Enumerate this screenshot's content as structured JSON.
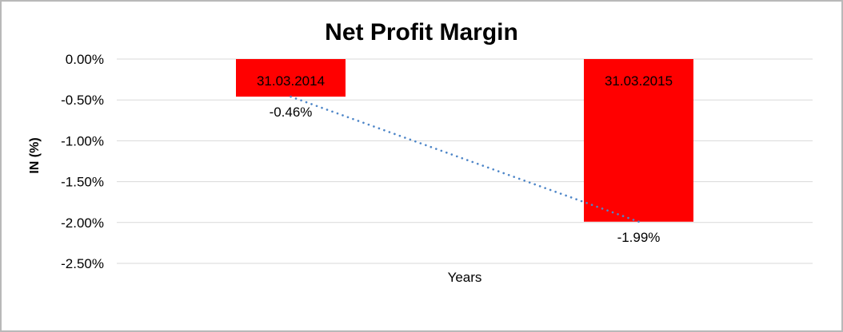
{
  "chart_data": {
    "type": "bar",
    "title": "Net Profit Margin",
    "xlabel": "Years",
    "ylabel": "IN (%)",
    "categories": [
      "31.03.2014",
      "31.03.2015"
    ],
    "values": [
      -0.46,
      -1.99
    ],
    "data_labels": [
      "-0.46%",
      "-1.99%"
    ],
    "ylim": [
      -2.5,
      0
    ],
    "yticks": [
      0,
      -0.5,
      -1.0,
      -1.5,
      -2.0,
      -2.5
    ],
    "ytick_labels": [
      "0.00%",
      "-0.50%",
      "-1.00%",
      "-1.50%",
      "-2.00%",
      "-2.50%"
    ],
    "grid": true,
    "legend": "none",
    "colors": {
      "bar_fill": "#FF0000",
      "bar_label_text": "#000000",
      "gridline": "#D9D9D9",
      "trendline_blue": "#4E86C8"
    },
    "trendline": {
      "type": "linear",
      "style": "dotted",
      "from_value": -0.46,
      "to_value": -1.99
    }
  }
}
